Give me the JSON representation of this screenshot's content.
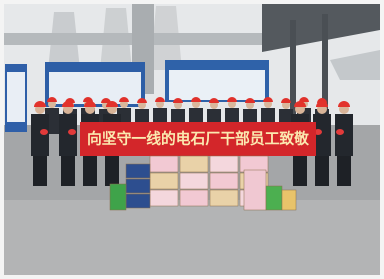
{
  "banner": {
    "text": "向坚守一线的电石厂干部员工致敬"
  }
}
